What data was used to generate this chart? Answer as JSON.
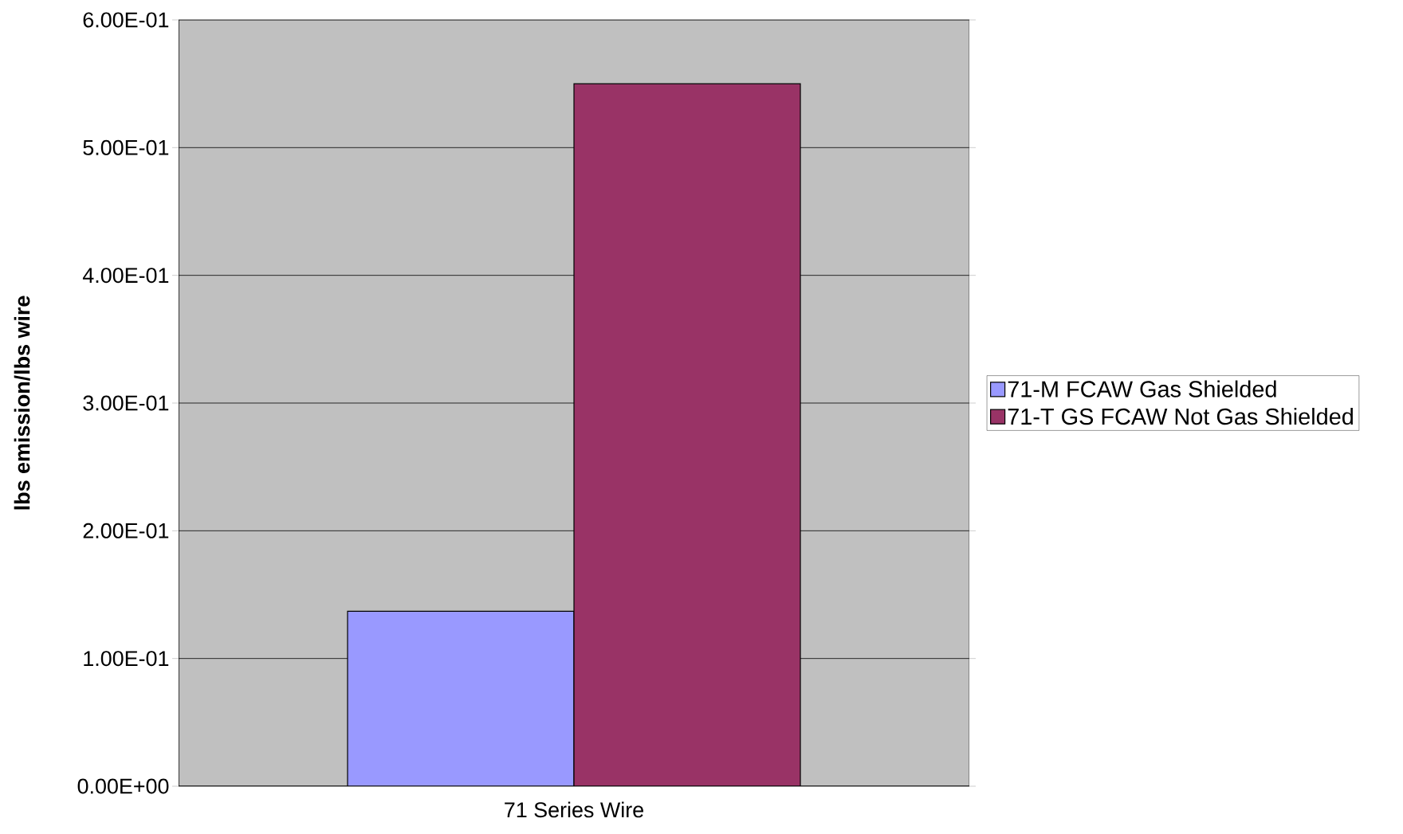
{
  "chart_data": {
    "type": "bar",
    "ylabel": "**lbs emission/lbs wire**",
    "categories": [
      "71 Series Wire"
    ],
    "series": [
      {
        "name": "71-M FCAW Gas Shielded",
        "color": "#9999ff",
        "values": [
          0.137
        ]
      },
      {
        "name": "71-T GS FCAW Not Gas Shielded",
        "color": "#993366",
        "values": [
          0.55
        ]
      }
    ],
    "ylim": [
      0,
      0.6
    ],
    "yticks": [
      {
        "value": 0,
        "label": "0.00E+00"
      },
      {
        "value": 0.1,
        "label": "1.00E-01"
      },
      {
        "value": 0.2,
        "label": "2.00E-01"
      },
      {
        "value": 0.3,
        "label": "3.00E-01"
      },
      {
        "value": 0.4,
        "label": "4.00E-01"
      },
      {
        "value": 0.5,
        "label": "5.00E-01"
      },
      {
        "value": 0.6,
        "label": "6.00E-01"
      }
    ],
    "grid": "y",
    "legend": "right"
  }
}
